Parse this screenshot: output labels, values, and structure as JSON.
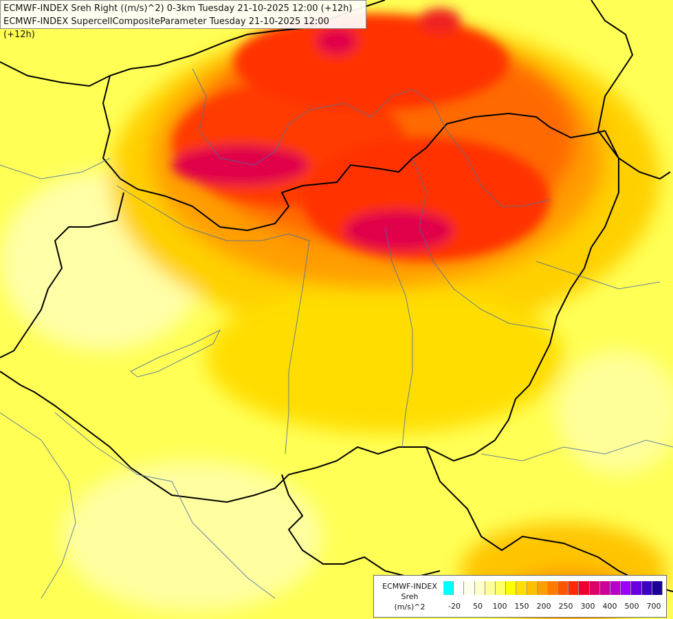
{
  "titles": {
    "line1": "ECMWF-INDEX Sreh Right ((m/s)^2) 0-3km Tuesday 21-10-2025 12:00 (+12h)",
    "line2": "ECMWF-INDEX SupercellCompositeParameter Tuesday 21-10-2025 12:00 (+12h)"
  },
  "legend": {
    "line1": "ECMWF-INDEX",
    "line2": "Sreh",
    "line3": "(m/s)^2",
    "colors": [
      "#00ffff",
      "#ffffff",
      "#ffffee",
      "#ffffcc",
      "#ffff99",
      "#ffff66",
      "#ffff00",
      "#ffdd00",
      "#ffc000",
      "#ff9e00",
      "#ff7a00",
      "#ff5500",
      "#ff2a00",
      "#ee0030",
      "#dd0066",
      "#cc0099",
      "#bb00cc",
      "#9900ff",
      "#6a00e0",
      "#3d00c0",
      "#1a0099"
    ],
    "tick_labels": [
      "-20",
      "50",
      "100",
      "150",
      "200",
      "250",
      "300",
      "400",
      "500",
      "700"
    ]
  }
}
